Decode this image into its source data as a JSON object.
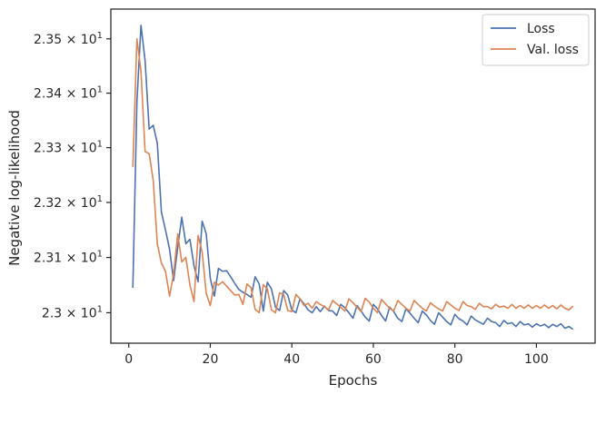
{
  "chart_data": {
    "type": "line",
    "title": "",
    "xlabel": "Epochs",
    "ylabel": "Negative log-likelihood",
    "yscale": "log",
    "xlim": [
      -4.4,
      114.4
    ],
    "ylim": [
      22.945,
      23.555
    ],
    "grid": false,
    "legend_position": "top-right",
    "x_ticks": [
      0,
      20,
      40,
      60,
      80,
      100
    ],
    "x_tick_labels": [
      "0",
      "20",
      "40",
      "60",
      "80",
      "100"
    ],
    "y_ticks": [
      23.0,
      23.1,
      23.2,
      23.3,
      23.4,
      23.5
    ],
    "y_tick_labels": [
      {
        "base": "2.3",
        "exp": "1"
      },
      {
        "base": "2.31",
        "exp": "1"
      },
      {
        "base": "2.32",
        "exp": "1"
      },
      {
        "base": "2.33",
        "exp": "1"
      },
      {
        "base": "2.34",
        "exp": "1"
      },
      {
        "base": "2.35",
        "exp": "1"
      }
    ],
    "series": [
      {
        "name": "Loss",
        "color": "#4c72b0",
        "x": [
          1,
          2,
          3,
          4,
          5,
          6,
          7,
          8,
          9,
          10,
          11,
          12,
          13,
          14,
          15,
          16,
          17,
          18,
          19,
          20,
          21,
          22,
          23,
          24,
          25,
          26,
          27,
          28,
          29,
          30,
          31,
          32,
          33,
          34,
          35,
          36,
          37,
          38,
          39,
          40,
          41,
          42,
          43,
          44,
          45,
          46,
          47,
          48,
          49,
          50,
          51,
          52,
          53,
          54,
          55,
          56,
          57,
          58,
          59,
          60,
          61,
          62,
          63,
          64,
          65,
          66,
          67,
          68,
          69,
          70,
          71,
          72,
          73,
          74,
          75,
          76,
          77,
          78,
          79,
          80,
          81,
          82,
          83,
          84,
          85,
          86,
          87,
          88,
          89,
          90,
          91,
          92,
          93,
          94,
          95,
          96,
          97,
          98,
          99,
          100,
          101,
          102,
          103,
          104,
          105,
          106,
          107,
          108,
          109
        ],
        "values": [
          23.045,
          23.385,
          23.525,
          23.46,
          23.334,
          23.341,
          23.308,
          23.183,
          23.15,
          23.115,
          23.058,
          23.118,
          23.173,
          23.125,
          23.133,
          23.085,
          23.056,
          23.166,
          23.143,
          23.062,
          23.03,
          23.08,
          23.075,
          23.076,
          23.065,
          23.053,
          23.042,
          23.037,
          23.033,
          23.028,
          23.065,
          23.052,
          23.003,
          23.055,
          23.043,
          23.01,
          23.004,
          23.04,
          23.032,
          23.005,
          23.0,
          23.025,
          23.016,
          23.005,
          23.0,
          23.011,
          23.002,
          23.012,
          23.004,
          23.003,
          22.995,
          23.015,
          23.009,
          23.0,
          22.99,
          23.013,
          23.003,
          22.992,
          22.985,
          23.015,
          23.007,
          22.995,
          22.985,
          23.01,
          23.002,
          22.99,
          22.984,
          23.007,
          22.999,
          22.99,
          22.982,
          23.003,
          22.996,
          22.986,
          22.979,
          23.0,
          22.992,
          22.984,
          22.978,
          22.997,
          22.989,
          22.985,
          22.978,
          22.994,
          22.987,
          22.983,
          22.979,
          22.99,
          22.984,
          22.982,
          22.975,
          22.986,
          22.98,
          22.982,
          22.975,
          22.984,
          22.978,
          22.98,
          22.974,
          22.98,
          22.976,
          22.979,
          22.973,
          22.979,
          22.975,
          22.98,
          22.972,
          22.975,
          22.97
        ]
      },
      {
        "name": "Val. loss",
        "color": "#dd8452",
        "x": [
          1,
          2,
          3,
          4,
          5,
          6,
          7,
          8,
          9,
          10,
          11,
          12,
          13,
          14,
          15,
          16,
          17,
          18,
          19,
          20,
          21,
          22,
          23,
          24,
          25,
          26,
          27,
          28,
          29,
          30,
          31,
          32,
          33,
          34,
          35,
          36,
          37,
          38,
          39,
          40,
          41,
          42,
          43,
          44,
          45,
          46,
          47,
          48,
          49,
          50,
          51,
          52,
          53,
          54,
          55,
          56,
          57,
          58,
          59,
          60,
          61,
          62,
          63,
          64,
          65,
          66,
          67,
          68,
          69,
          70,
          71,
          72,
          73,
          74,
          75,
          76,
          77,
          78,
          79,
          80,
          81,
          82,
          83,
          84,
          85,
          86,
          87,
          88,
          89,
          90,
          91,
          92,
          93,
          94,
          95,
          96,
          97,
          98,
          99,
          100,
          101,
          102,
          103,
          104,
          105,
          106,
          107,
          108,
          109
        ],
        "values": [
          23.265,
          23.5,
          23.44,
          23.293,
          23.289,
          23.24,
          23.125,
          23.09,
          23.075,
          23.03,
          23.07,
          23.143,
          23.092,
          23.1,
          23.05,
          23.02,
          23.14,
          23.11,
          23.035,
          23.013,
          23.055,
          23.05,
          23.056,
          23.048,
          23.04,
          23.032,
          23.033,
          23.015,
          23.052,
          23.045,
          23.006,
          23.0,
          23.051,
          23.043,
          23.005,
          23.0,
          23.036,
          23.033,
          23.004,
          23.002,
          23.033,
          23.025,
          23.013,
          23.017,
          23.008,
          23.02,
          23.015,
          23.011,
          23.005,
          23.022,
          23.016,
          23.01,
          23.003,
          23.025,
          23.018,
          23.01,
          23.002,
          23.026,
          23.019,
          23.008,
          23.0,
          23.024,
          23.016,
          23.008,
          23.003,
          23.022,
          23.015,
          23.008,
          23.003,
          23.022,
          23.015,
          23.008,
          23.003,
          23.018,
          23.012,
          23.007,
          23.003,
          23.02,
          23.014,
          23.008,
          23.004,
          23.02,
          23.013,
          23.011,
          23.006,
          23.017,
          23.011,
          23.011,
          23.007,
          23.015,
          23.01,
          23.012,
          23.008,
          23.015,
          23.008,
          23.013,
          23.008,
          23.014,
          23.008,
          23.013,
          23.008,
          23.014,
          23.008,
          23.013,
          23.007,
          23.014,
          23.008,
          23.005,
          23.012
        ]
      }
    ]
  }
}
